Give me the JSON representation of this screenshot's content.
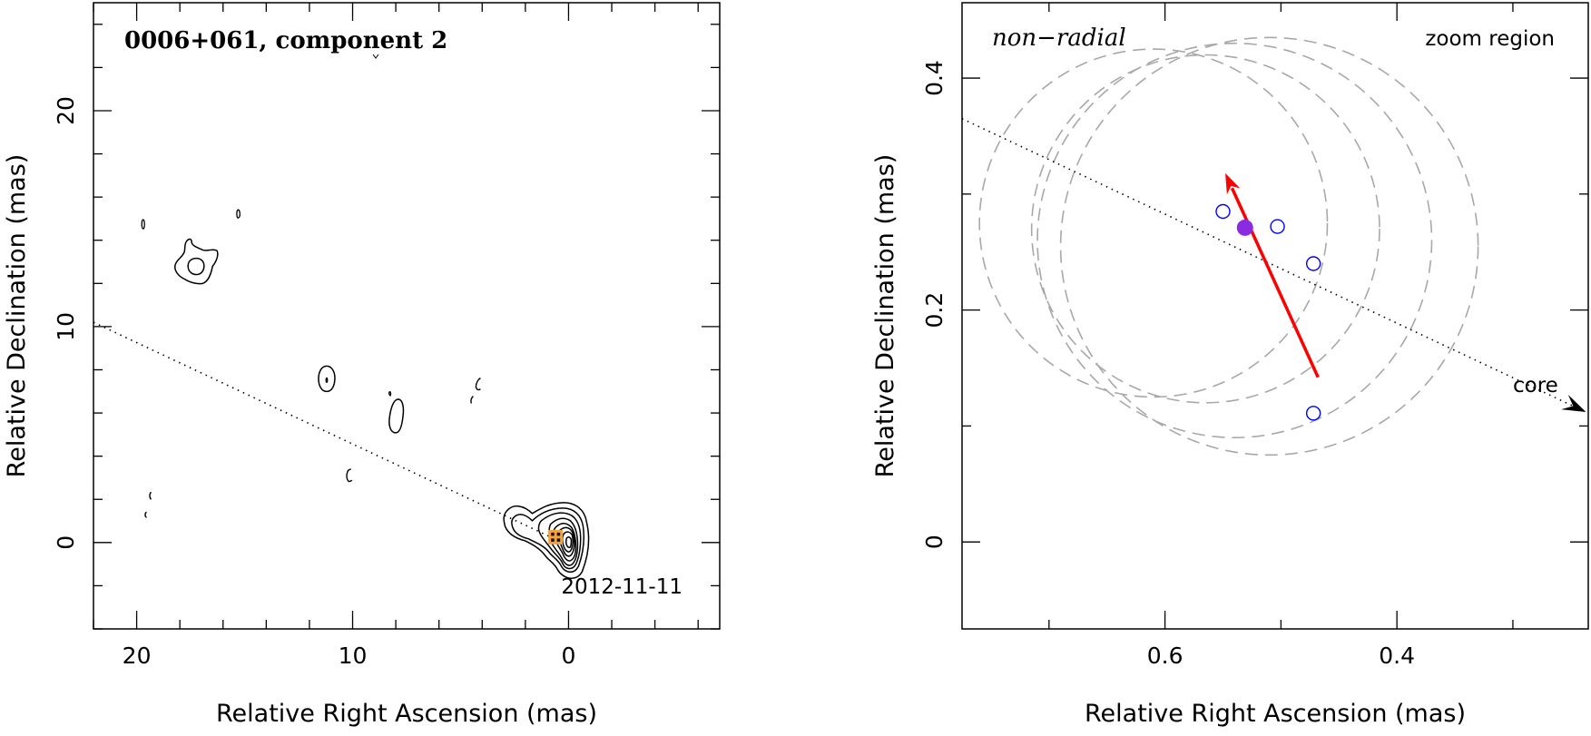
{
  "chart_data": [
    {
      "type": "scatter",
      "title": "0006+061, component 2",
      "xlabel": "Relative Right Ascension (mas)",
      "ylabel": "Relative Declination (mas)",
      "xlim": [
        22,
        -7
      ],
      "ylim": [
        -4,
        25
      ],
      "xticks_major": [
        20,
        10,
        0
      ],
      "yticks_major": [
        0,
        10,
        20
      ],
      "epoch_label": "2012-11-11",
      "grid": false,
      "x_axis_reversed": true,
      "dotted_line": [
        [
          22,
          10.2
        ],
        [
          0.5,
          0.1
        ]
      ],
      "component_marker": {
        "x": 0.6,
        "y": 0.25,
        "color": "#f4a23c"
      },
      "core_peak": {
        "x": 0.0,
        "y": 0.0
      },
      "contours": [
        {
          "name": "northern blob",
          "x": 17.2,
          "y": 13.3
        },
        {
          "name": "knot",
          "x": 11.2,
          "y": 7.5
        },
        {
          "name": "knot",
          "x": 8.0,
          "y": 5.8
        },
        {
          "name": "knot",
          "x": 4.5,
          "y": 7.2
        },
        {
          "name": "knot",
          "x": 19.5,
          "y": 2.0
        },
        {
          "name": "knot",
          "x": 10.2,
          "y": 3.1
        }
      ]
    },
    {
      "type": "scatter",
      "title": "non−radial",
      "annotation": "zoom region",
      "xlabel": "Relative Right Ascension (mas)",
      "ylabel": "Relative Declination (mas)",
      "xlim": [
        0.775,
        0.235
      ],
      "ylim": [
        -0.075,
        0.465
      ],
      "xticks_major": [
        0.6,
        0.4
      ],
      "yticks_major": [
        0,
        0.2,
        0.4
      ],
      "grid": false,
      "x_axis_reversed": true,
      "core_label": "core",
      "core_direction_line": [
        [
          0.775,
          0.365
        ],
        [
          0.237,
          0.112
        ]
      ],
      "motion_vector": {
        "from": [
          0.468,
          0.142
        ],
        "to": [
          0.548,
          0.318
        ],
        "color": "#ff0000"
      },
      "mean_position": {
        "x": 0.531,
        "y": 0.271,
        "color": "#8a2be2"
      },
      "epoch_positions": [
        {
          "x": 0.55,
          "y": 0.285
        },
        {
          "x": 0.503,
          "y": 0.272
        },
        {
          "x": 0.472,
          "y": 0.24
        },
        {
          "x": 0.472,
          "y": 0.111
        }
      ],
      "uncertainty_circles": [
        {
          "x": 0.61,
          "y": 0.275,
          "r": 0.15
        },
        {
          "x": 0.565,
          "y": 0.27,
          "r": 0.15
        },
        {
          "x": 0.54,
          "y": 0.26,
          "r": 0.17
        },
        {
          "x": 0.51,
          "y": 0.255,
          "r": 0.18
        }
      ]
    }
  ]
}
